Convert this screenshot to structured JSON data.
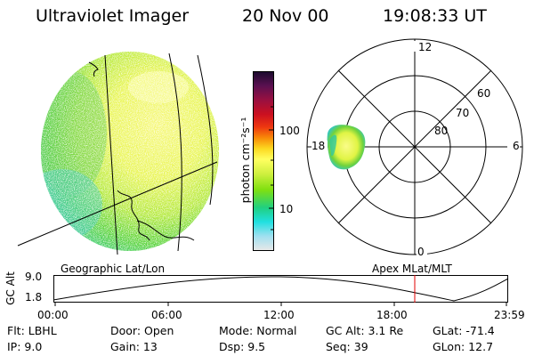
{
  "header": {
    "title": "Ultraviolet Imager",
    "date": "20 Nov 00",
    "time": "19:08:33 UT"
  },
  "colorbar": {
    "label": "photon cm⁻²s⁻¹",
    "ticks": [
      "100",
      "10"
    ],
    "colors": [
      "#1a0a2e",
      "#5a1050",
      "#9a1040",
      "#cc1020",
      "#ee3810",
      "#f88a08",
      "#fcd820",
      "#ffff60",
      "#d0f040",
      "#80e010",
      "#20d080",
      "#20e0e0",
      "#a0e0f0",
      "#e8e8e8"
    ]
  },
  "polar": {
    "mlt_labels": {
      "top": "12",
      "left": "18",
      "right": "6",
      "bottom": "0"
    },
    "lat_labels": [
      "60",
      "70",
      "80"
    ]
  },
  "timeline": {
    "left_label": "Geographic Lat/Lon",
    "right_label": "Apex MLat/MLT",
    "yaxis_label": "GC Alt",
    "ymax": "9.0",
    "ymin": "1.8",
    "xticks": [
      "00:00",
      "06:00",
      "12:00",
      "18:00",
      "23:59"
    ],
    "current_color": "#e00000"
  },
  "info": {
    "col1": [
      "Flt: LBHL",
      "IP:  9.0"
    ],
    "col2": [
      "Door: Open",
      "Gain: 13"
    ],
    "col3": [
      "Mode: Normal",
      "Dsp:    9.5"
    ],
    "col4": [
      "GC Alt: 3.1 Re",
      "Seq: 39"
    ],
    "col5": [
      "GLat: -71.4",
      "GLon:  12.7"
    ]
  }
}
